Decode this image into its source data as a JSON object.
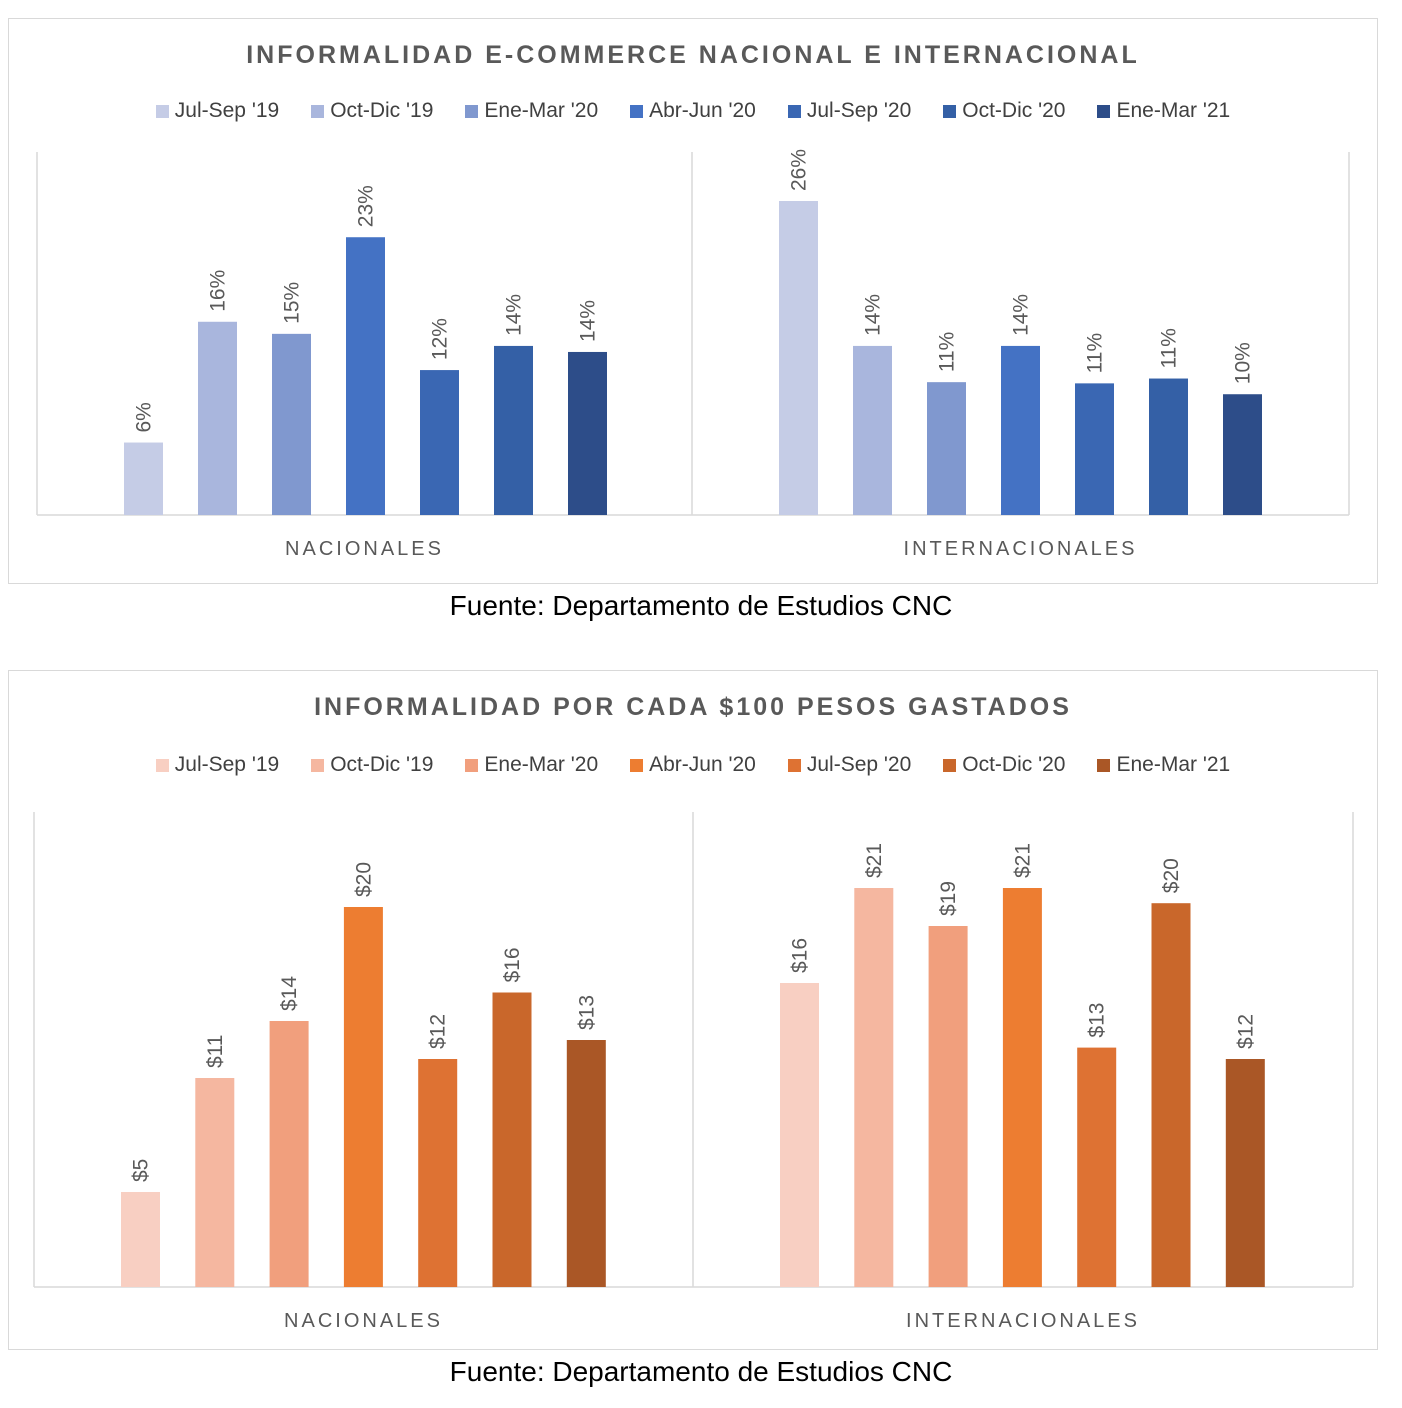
{
  "chart_data": [
    {
      "type": "bar",
      "title": "INFORMALIDAD E-COMMERCE NACIONAL E INTERNACIONAL",
      "categories": [
        "NACIONALES",
        "INTERNACIONALES"
      ],
      "ylim": [
        0,
        30
      ],
      "legend_position": "top",
      "grid": false,
      "series": [
        {
          "name": "Jul-Sep '19",
          "color": "#C5CCE6",
          "values": [
            6,
            26
          ],
          "labels": [
            "6%",
            "26%"
          ]
        },
        {
          "name": "Oct-Dic '19",
          "color": "#A9B6DD",
          "values": [
            16,
            14
          ],
          "labels": [
            "16%",
            "14%"
          ]
        },
        {
          "name": "Ene-Mar '20",
          "color": "#8098CF",
          "values": [
            15,
            11
          ],
          "labels": [
            "15%",
            "11%"
          ]
        },
        {
          "name": "Abr-Jun '20",
          "color": "#4472C4",
          "values": [
            23,
            14
          ],
          "labels": [
            "23%",
            "14%"
          ]
        },
        {
          "name": "Jul-Sep '20",
          "color": "#3A67B3",
          "values": [
            12,
            10.9
          ],
          "labels": [
            "12%",
            "11%"
          ]
        },
        {
          "name": "Oct-Dic '20",
          "color": "#3460A6",
          "values": [
            14,
            11.3
          ],
          "labels": [
            "14%",
            "11%"
          ]
        },
        {
          "name": "Ene-Mar '21",
          "color": "#2D4D89",
          "values": [
            13.5,
            10
          ],
          "labels": [
            "14%",
            "10%"
          ]
        }
      ]
    },
    {
      "type": "bar",
      "title": "INFORMALIDAD POR CADA $100 PESOS GASTADOS",
      "categories": [
        "NACIONALES",
        "INTERNACIONALES"
      ],
      "ylim": [
        0,
        25
      ],
      "legend_position": "top",
      "grid": false,
      "series": [
        {
          "name": "Jul-Sep '19",
          "color": "#F8CFC2",
          "values": [
            5,
            16
          ],
          "labels": [
            "$5",
            "$16"
          ]
        },
        {
          "name": "Oct-Dic '19",
          "color": "#F5B7A0",
          "values": [
            11,
            21
          ],
          "labels": [
            "$11",
            "$21"
          ]
        },
        {
          "name": "Ene-Mar '20",
          "color": "#F19F7D",
          "values": [
            14,
            19
          ],
          "labels": [
            "$14",
            "$19"
          ]
        },
        {
          "name": "Abr-Jun '20",
          "color": "#ED7D31",
          "values": [
            20,
            21
          ],
          "labels": [
            "$20",
            "$21"
          ]
        },
        {
          "name": "Jul-Sep '20",
          "color": "#DE7233",
          "values": [
            12,
            12.6
          ],
          "labels": [
            "$12",
            "$13"
          ]
        },
        {
          "name": "Oct-Dic '20",
          "color": "#C9672B",
          "values": [
            15.5,
            20.2
          ],
          "labels": [
            "$16",
            "$20"
          ]
        },
        {
          "name": "Ene-Mar '21",
          "color": "#AA5726",
          "values": [
            13,
            12
          ],
          "labels": [
            "$13",
            "$12"
          ]
        }
      ]
    }
  ],
  "sources": [
    "Fuente: Departamento de Estudios CNC",
    "Fuente: Departamento de Estudios CNC"
  ]
}
